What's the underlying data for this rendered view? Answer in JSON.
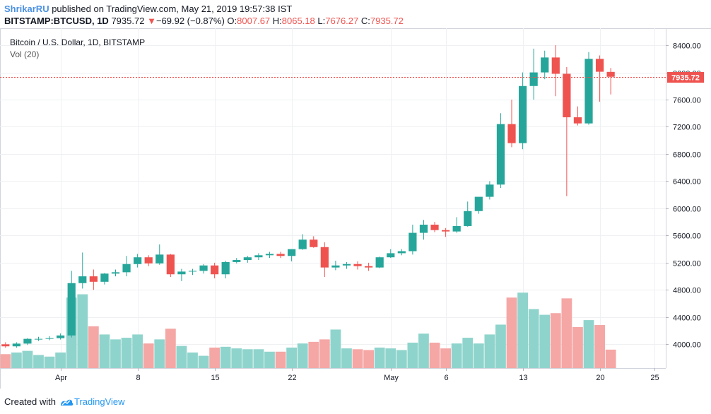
{
  "header": {
    "author": "ShrikarRU",
    "published_text": "published on TradingView.com, May 21, 2019 19:57:38 IST",
    "symbol": "BITSTAMP:BTCUSD, 1D",
    "last": "7935.72",
    "change_arrow": "▼",
    "change": "−69.92 (−0.87%)",
    "o_label": "O:",
    "o": "8007.67",
    "h_label": "H:",
    "h": "8065.18",
    "l_label": "L:",
    "l": "7676.27",
    "c_label": "C:",
    "c": "7935.72"
  },
  "legend": {
    "title": "Bitcoin / U.S. Dollar, 1D, BITSTAMP",
    "volume": "Vol (20)"
  },
  "footer": {
    "created_with": "Created with",
    "brand": "TradingView"
  },
  "colors": {
    "up": "#26a69a",
    "down": "#ef5350",
    "vol_up": "#8fd4cc",
    "vol_down": "#f4a7a5",
    "grid": "#eef0f3"
  },
  "chart_data": {
    "type": "candlestick",
    "title": "Bitcoin / U.S. Dollar, 1D, BITSTAMP",
    "y_ticks": [
      4000,
      4400,
      4800,
      5200,
      5600,
      6000,
      6400,
      6800,
      7200,
      7600,
      8000,
      8400
    ],
    "ylim": [
      3650,
      8650
    ],
    "last_price_label": "7935.72",
    "last_price": 7935.72,
    "x_ticks": [
      {
        "label": "Apr",
        "index": 5
      },
      {
        "label": "8",
        "index": 12
      },
      {
        "label": "15",
        "index": 19
      },
      {
        "label": "22",
        "index": 26
      },
      {
        "label": "May",
        "index": 35
      },
      {
        "label": "6",
        "index": 40
      },
      {
        "label": "13",
        "index": 47
      },
      {
        "label": "20",
        "index": 54
      },
      {
        "label": "25",
        "index": 59
      }
    ],
    "x_range": [
      -0.5,
      60
    ],
    "candles": [
      [
        4000,
        4030,
        3950,
        3970,
        0.34
      ],
      [
        3970,
        4030,
        3950,
        4010,
        0.38
      ],
      [
        4010,
        4090,
        3990,
        4080,
        0.42
      ],
      [
        4080,
        4110,
        4050,
        4080,
        0.32
      ],
      [
        4080,
        4120,
        4060,
        4090,
        0.28
      ],
      [
        4090,
        4160,
        4070,
        4130,
        0.38
      ],
      [
        4130,
        5080,
        4100,
        4900,
        1.72
      ],
      [
        4900,
        5350,
        4820,
        5000,
        1.8
      ],
      [
        5000,
        5100,
        4800,
        4920,
        1.02
      ],
      [
        4920,
        5050,
        4880,
        5040,
        0.82
      ],
      [
        5040,
        5100,
        5000,
        5060,
        0.7
      ],
      [
        5060,
        5300,
        5000,
        5180,
        0.74
      ],
      [
        5180,
        5330,
        5130,
        5280,
        0.82
      ],
      [
        5280,
        5310,
        5150,
        5190,
        0.6
      ],
      [
        5190,
        5470,
        5170,
        5320,
        0.7
      ],
      [
        5320,
        5330,
        4990,
        5030,
        0.96
      ],
      [
        5030,
        5110,
        4930,
        5070,
        0.54
      ],
      [
        5070,
        5110,
        5020,
        5080,
        0.38
      ],
      [
        5080,
        5180,
        5040,
        5160,
        0.3
      ],
      [
        5160,
        5200,
        4970,
        5030,
        0.5
      ],
      [
        5030,
        5230,
        4970,
        5210,
        0.52
      ],
      [
        5210,
        5270,
        5190,
        5240,
        0.48
      ],
      [
        5240,
        5300,
        5200,
        5280,
        0.46
      ],
      [
        5280,
        5340,
        5240,
        5310,
        0.46
      ],
      [
        5310,
        5360,
        5270,
        5330,
        0.4
      ],
      [
        5330,
        5360,
        5270,
        5300,
        0.4
      ],
      [
        5300,
        5400,
        5220,
        5400,
        0.5
      ],
      [
        5400,
        5620,
        5390,
        5540,
        0.6
      ],
      [
        5540,
        5590,
        5420,
        5430,
        0.64
      ],
      [
        5430,
        5500,
        4990,
        5130,
        0.7
      ],
      [
        5130,
        5230,
        5090,
        5160,
        0.94
      ],
      [
        5160,
        5210,
        5110,
        5180,
        0.48
      ],
      [
        5180,
        5220,
        5100,
        5150,
        0.46
      ],
      [
        5150,
        5200,
        5080,
        5130,
        0.44
      ],
      [
        5130,
        5290,
        5120,
        5280,
        0.5
      ],
      [
        5280,
        5400,
        5270,
        5340,
        0.48
      ],
      [
        5340,
        5400,
        5310,
        5370,
        0.44
      ],
      [
        5370,
        5760,
        5320,
        5640,
        0.62
      ],
      [
        5640,
        5830,
        5540,
        5760,
        0.84
      ],
      [
        5760,
        5800,
        5650,
        5680,
        0.62
      ],
      [
        5680,
        5710,
        5580,
        5660,
        0.48
      ],
      [
        5660,
        5870,
        5640,
        5740,
        0.6
      ],
      [
        5740,
        6100,
        5730,
        5960,
        0.74
      ],
      [
        5960,
        6150,
        5920,
        6170,
        0.6
      ],
      [
        6170,
        6400,
        6130,
        6350,
        0.82
      ],
      [
        6350,
        7400,
        6300,
        7240,
        1.06
      ],
      [
        7240,
        7600,
        6900,
        6960,
        1.72
      ],
      [
        6960,
        8000,
        6870,
        7800,
        1.84
      ],
      [
        7800,
        8350,
        7600,
        8000,
        1.44
      ],
      [
        8000,
        8320,
        7900,
        8220,
        1.3
      ],
      [
        8220,
        8400,
        7650,
        7980,
        1.34
      ],
      [
        7980,
        8080,
        6180,
        7340,
        1.7
      ],
      [
        7340,
        7500,
        7220,
        7250,
        1.0
      ],
      [
        7250,
        8300,
        7230,
        8200,
        1.17
      ],
      [
        8200,
        8250,
        7570,
        8010,
        1.05
      ],
      [
        8007.67,
        8065.18,
        7676.27,
        7935.72,
        0.45
      ]
    ]
  }
}
